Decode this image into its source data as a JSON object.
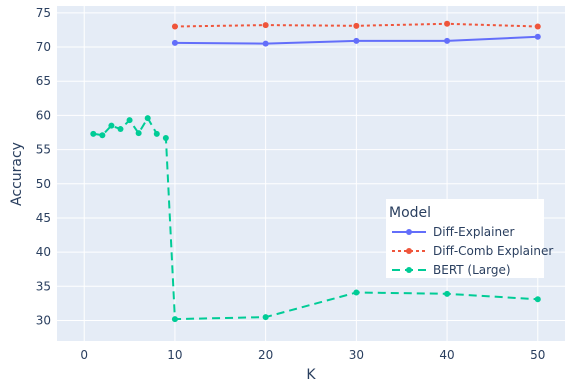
{
  "chart_data": {
    "type": "line",
    "xlabel": "K",
    "ylabel": "Accuracy",
    "xlim": [
      -3,
      53
    ],
    "ylim": [
      27,
      76
    ],
    "xticks": [
      0,
      10,
      20,
      30,
      40,
      50
    ],
    "yticks": [
      30,
      35,
      40,
      45,
      50,
      55,
      60,
      65,
      70,
      75
    ],
    "grid": true,
    "background": "#e5ecf6",
    "legend": {
      "title": "Model",
      "placement": "center-right"
    },
    "series": [
      {
        "name": "Diff-Explainer",
        "color": "#636efa",
        "dash": "solid",
        "x": [
          10,
          20,
          30,
          40,
          50
        ],
        "y": [
          70.6,
          70.5,
          70.9,
          70.9,
          71.5
        ]
      },
      {
        "name": "Diff-Comb Explainer",
        "color": "#ef553b",
        "dash": "dot",
        "x": [
          10,
          20,
          30,
          40,
          50
        ],
        "y": [
          73.0,
          73.2,
          73.1,
          73.4,
          73.0
        ]
      },
      {
        "name": "BERT (Large)",
        "color": "#00cc96",
        "dash": "dash",
        "x": [
          1,
          2,
          3,
          4,
          5,
          6,
          7,
          8,
          9,
          10,
          20,
          30,
          40,
          50
        ],
        "y": [
          57.3,
          57.1,
          58.5,
          58.0,
          59.3,
          57.4,
          59.6,
          57.3,
          56.7,
          30.2,
          30.5,
          34.1,
          33.9,
          33.1
        ]
      }
    ]
  }
}
